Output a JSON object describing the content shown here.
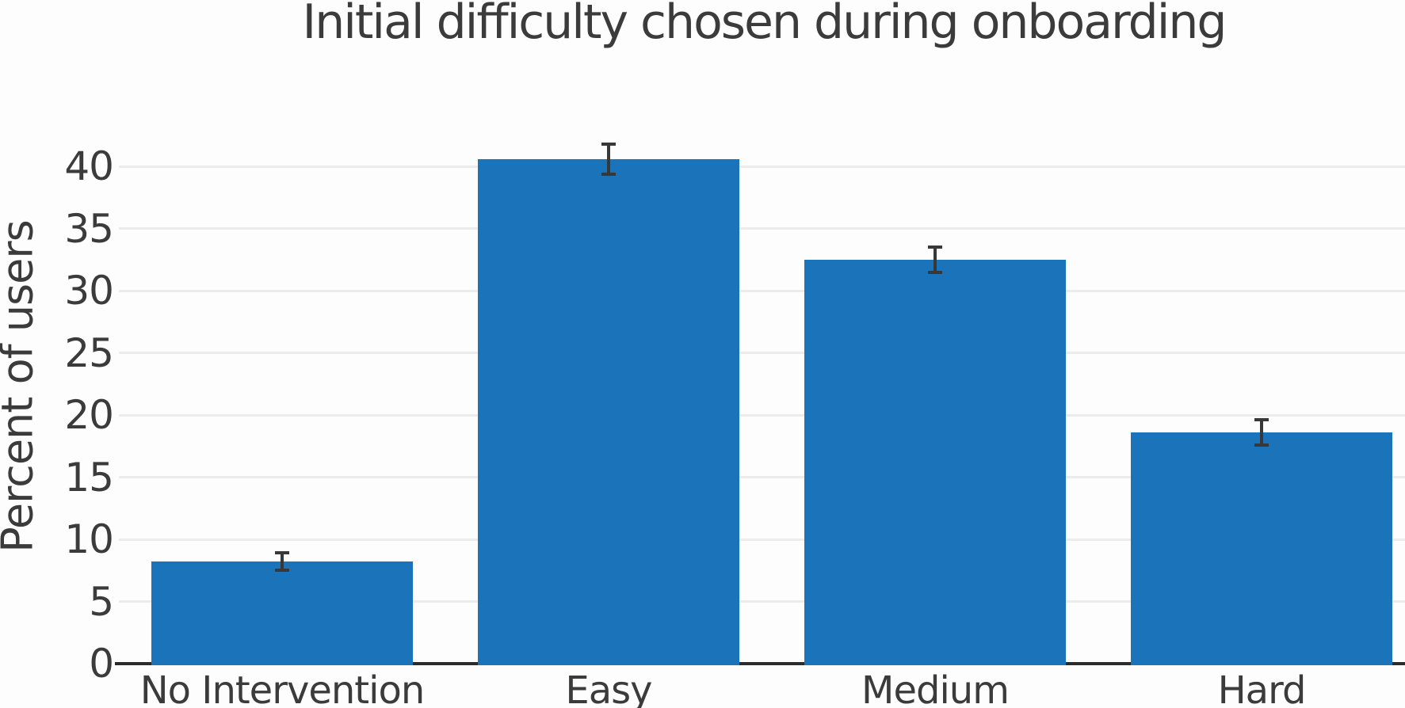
{
  "chart_data": {
    "type": "bar",
    "title": "Initial difficulty chosen during onboarding",
    "xlabel": "",
    "ylabel": "Percent of users",
    "categories": [
      "No Intervention",
      "Easy",
      "Medium",
      "Hard"
    ],
    "values": [
      8.2,
      40.6,
      32.5,
      18.6
    ],
    "error_bars": [
      0.7,
      1.2,
      1.0,
      1.0
    ],
    "yticks": [
      0,
      5,
      10,
      15,
      20,
      25,
      30,
      35,
      40
    ],
    "ylim": [
      0,
      45
    ],
    "grid": "horizontal-light",
    "legend": "none",
    "bar_color": "#1b74b9",
    "error_color": "#383838",
    "grid_color": "#ececec",
    "axis_color": "#2b2b2b",
    "text_color": "#3b3b3b",
    "background": "#fdfdfd"
  }
}
